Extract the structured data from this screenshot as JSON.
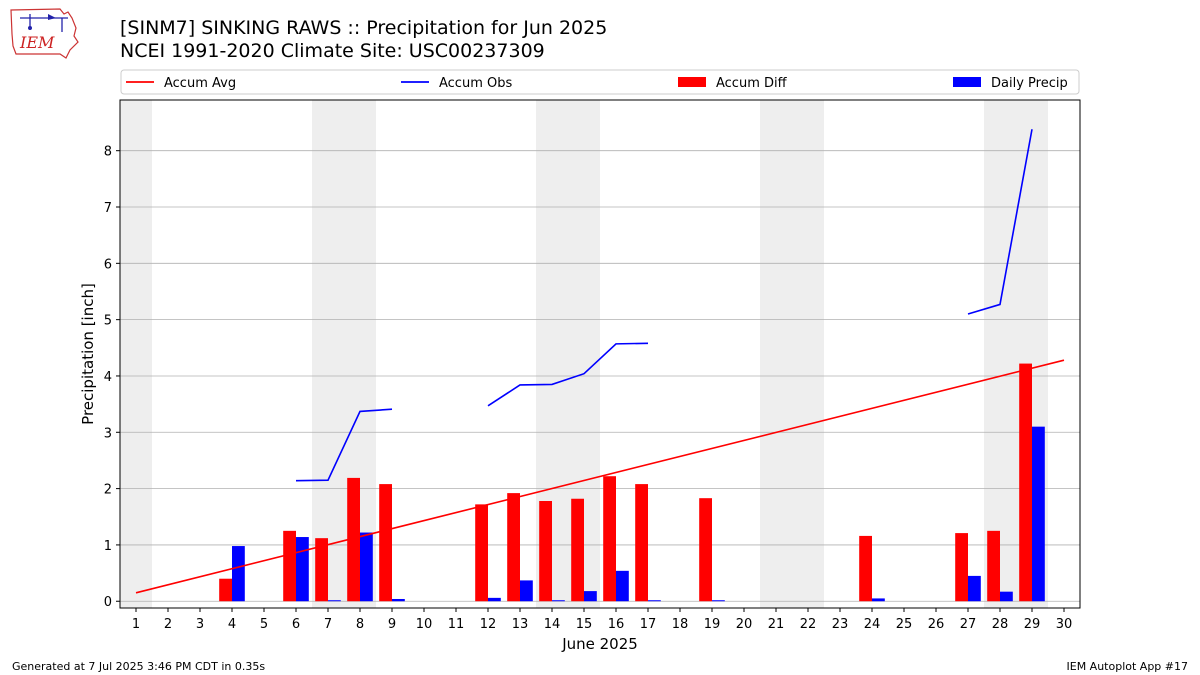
{
  "header": {
    "title_line1": "[SINM7] SINKING RAWS :: Precipitation for Jun 2025",
    "title_line2": "NCEI 1991-2020 Climate Site: USC00237309",
    "logo_text": "IEM"
  },
  "footer": {
    "left": "Generated at 7 Jul 2025 3:46 PM CDT in 0.35s",
    "right": "IEM Autoplot App #17"
  },
  "chart_data": {
    "type": "bar",
    "xlabel": "June 2025",
    "ylabel": "Precipitation [inch]",
    "ylim": [
      -0.12,
      8.9
    ],
    "xlim": [
      0.5,
      30.5
    ],
    "y_ticks": [
      0,
      1,
      2,
      3,
      4,
      5,
      6,
      7,
      8
    ],
    "x_ticks": [
      1,
      2,
      3,
      4,
      5,
      6,
      7,
      8,
      9,
      10,
      11,
      12,
      13,
      14,
      15,
      16,
      17,
      18,
      19,
      20,
      21,
      22,
      23,
      24,
      25,
      26,
      27,
      28,
      29,
      30
    ],
    "grid": "horizontal",
    "weekend_shading": [
      1,
      7,
      8,
      14,
      15,
      21,
      22,
      28,
      29
    ],
    "legend_position": "top",
    "legend": [
      {
        "label": "Accum Avg",
        "kind": "line",
        "color": "#ff0000"
      },
      {
        "label": "Accum Obs",
        "kind": "line",
        "color": "#0000ff"
      },
      {
        "label": "Accum Diff",
        "kind": "bar",
        "color": "#ff0000"
      },
      {
        "label": "Daily Precip",
        "kind": "bar",
        "color": "#0000ff"
      }
    ],
    "accum_avg": {
      "days": [
        1,
        30
      ],
      "values": [
        0.15,
        4.28
      ]
    },
    "accum_obs": [
      {
        "days": [
          6,
          7,
          8,
          9
        ],
        "values": [
          2.14,
          2.15,
          3.37,
          3.41
        ]
      },
      {
        "days": [
          12,
          13,
          14,
          15,
          16,
          17
        ],
        "values": [
          3.47,
          3.84,
          3.85,
          4.04,
          4.57,
          4.58
        ]
      },
      {
        "days": [
          27,
          28,
          29
        ],
        "values": [
          5.1,
          5.27,
          8.38
        ]
      }
    ],
    "accum_diff": {
      "days": [
        4,
        6,
        7,
        8,
        9,
        12,
        13,
        14,
        15,
        16,
        17,
        19,
        24,
        27,
        28,
        29
      ],
      "values": [
        0.4,
        1.25,
        1.12,
        2.19,
        2.08,
        1.72,
        1.92,
        1.78,
        1.82,
        2.22,
        2.08,
        1.83,
        1.16,
        1.21,
        1.25,
        4.22
      ]
    },
    "daily_precip": {
      "days": [
        4,
        6,
        7,
        8,
        9,
        12,
        13,
        14,
        15,
        16,
        17,
        19,
        24,
        27,
        28,
        29
      ],
      "values": [
        0.98,
        1.14,
        0.01,
        1.22,
        0.04,
        0.06,
        0.37,
        0.01,
        0.18,
        0.54,
        0.01,
        0.01,
        0.05,
        0.45,
        0.17,
        3.1
      ]
    }
  }
}
